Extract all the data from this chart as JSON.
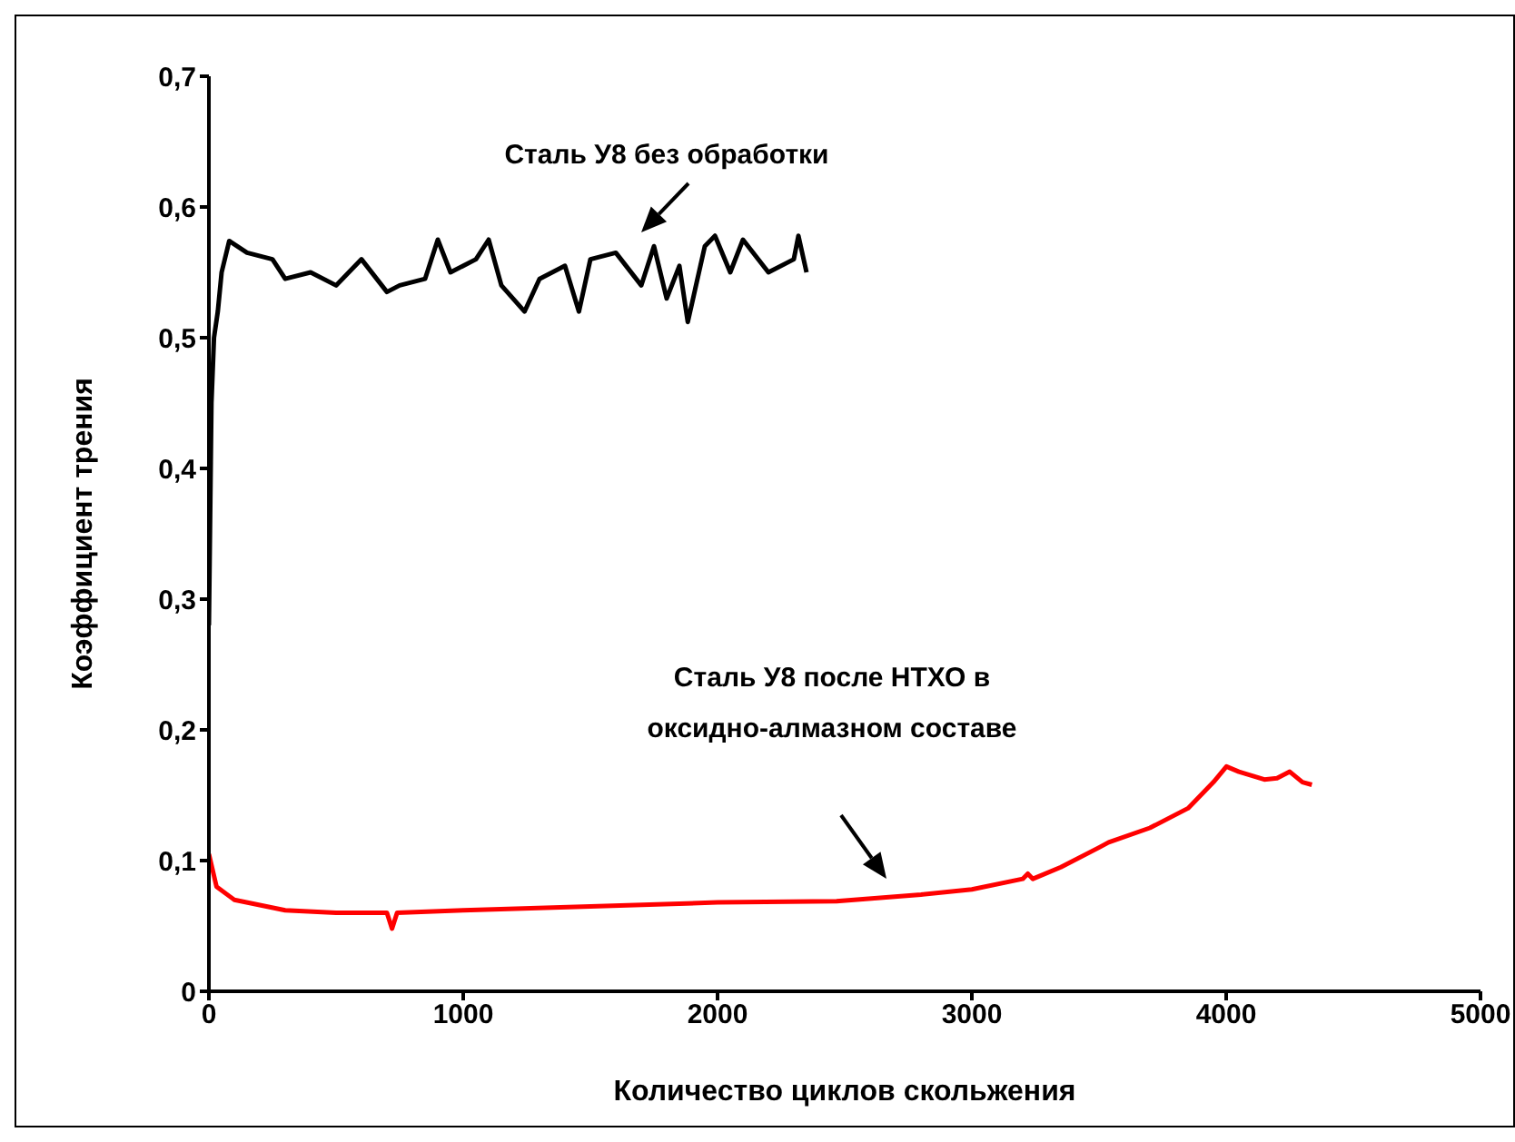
{
  "chart_data": {
    "type": "line",
    "xlabel": "Количество циклов скольжения",
    "ylabel": "Коэффициент трения",
    "xlim": [
      0,
      5000
    ],
    "xticks": [
      0,
      1000,
      2000,
      3000,
      4000,
      5000
    ],
    "ylim": [
      0,
      0.7
    ],
    "yticks": [
      {
        "value": 0,
        "label": "0"
      },
      {
        "value": 0.1,
        "label": "0,1"
      },
      {
        "value": 0.2,
        "label": "0,2"
      },
      {
        "value": 0.3,
        "label": "0,3"
      },
      {
        "value": 0.4,
        "label": "0,4"
      },
      {
        "value": 0.5,
        "label": "0,5"
      },
      {
        "value": 0.6,
        "label": "0,6"
      },
      {
        "value": 0.7,
        "label": "0,7"
      }
    ],
    "grid": false,
    "marker": "none",
    "series": [
      {
        "color": "#000000",
        "x": [
          0,
          10,
          20,
          35,
          50,
          80,
          150,
          250,
          300,
          400,
          500,
          600,
          700,
          750,
          850,
          900,
          950,
          1050,
          1100,
          1150,
          1241,
          1300,
          1400,
          1455,
          1500,
          1600,
          1700,
          1750,
          1800,
          1850,
          1883,
          1950,
          1990,
          2050,
          2100,
          2200,
          2300,
          2318,
          2350
        ],
        "values": [
          0.28,
          0.45,
          0.5,
          0.52,
          0.55,
          0.574,
          0.565,
          0.56,
          0.545,
          0.55,
          0.54,
          0.56,
          0.535,
          0.54,
          0.545,
          0.575,
          0.55,
          0.56,
          0.575,
          0.54,
          0.52,
          0.545,
          0.555,
          0.52,
          0.56,
          0.565,
          0.54,
          0.57,
          0.53,
          0.555,
          0.512,
          0.57,
          0.578,
          0.55,
          0.575,
          0.55,
          0.56,
          0.578,
          0.55
        ]
      },
      {
        "color": "#ff0000",
        "x": [
          0,
          30,
          100,
          300,
          500,
          700,
          720,
          740,
          1000,
          1500,
          2000,
          2468,
          2800,
          3000,
          3200,
          3220,
          3240,
          3350,
          3500,
          3538,
          3700,
          3850,
          3950,
          4001,
          4050,
          4100,
          4150,
          4200,
          4250,
          4300,
          4337
        ],
        "values": [
          0.105,
          0.08,
          0.07,
          0.062,
          0.06,
          0.06,
          0.048,
          0.06,
          0.062,
          0.065,
          0.068,
          0.069,
          0.074,
          0.078,
          0.086,
          0.09,
          0.086,
          0.095,
          0.11,
          0.114,
          0.125,
          0.14,
          0.16,
          0.172,
          0.168,
          0.165,
          0.162,
          0.163,
          0.168,
          0.16,
          0.158
        ]
      }
    ],
    "annotations": [
      "Сталь У8 без обработки",
      "Сталь У8 после НТХО в\nоксидно-алмазном составе"
    ]
  }
}
